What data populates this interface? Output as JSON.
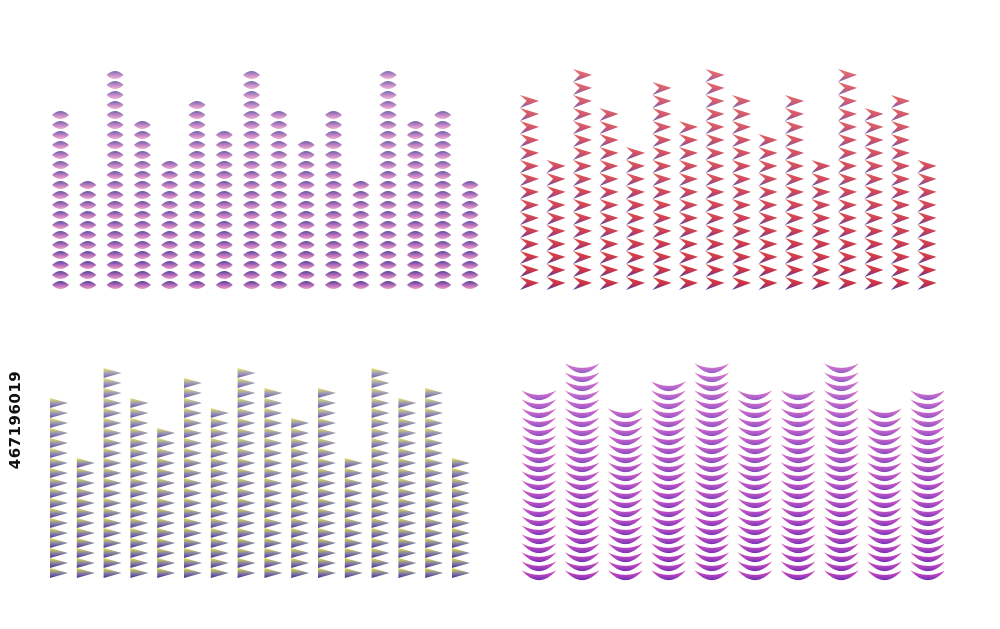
{
  "stock_id": "467196019",
  "panels": [
    {
      "id": "top-left-rounded-equalizer",
      "segment_shape": "rounded-capsule",
      "colors": {
        "top": "#4f3f9a",
        "mid": "#b66fb8",
        "bottom": "#f39ac8"
      },
      "levels": [
        0.82,
        0.49,
        0.98,
        0.76,
        0.61,
        0.88,
        0.71,
        0.98,
        0.82,
        0.66,
        0.82,
        0.52,
        0.98,
        0.77,
        0.82,
        0.52
      ]
    },
    {
      "id": "top-right-arrow-equalizer",
      "segment_shape": "chevron",
      "colors": {
        "top": "#e3463c",
        "mid": "#c5304c",
        "bottom": "#3d3ca8"
      },
      "levels": [
        0.87,
        0.6,
        1.0,
        0.82,
        0.65,
        0.93,
        0.76,
        1.0,
        0.87,
        0.71,
        0.87,
        0.6,
        1.0,
        0.82,
        0.87,
        0.6
      ]
    },
    {
      "id": "bottom-left-triangle-equalizer",
      "segment_shape": "triangle",
      "colors": {
        "top": "#e8e23a",
        "mid": "#7d7aa5",
        "bottom": "#4a2e8c"
      },
      "levels": [
        0.8,
        0.54,
        0.97,
        0.83,
        0.68,
        0.9,
        0.78,
        0.97,
        0.86,
        0.73,
        0.87,
        0.55,
        0.97,
        0.83,
        0.87,
        0.55
      ]
    },
    {
      "id": "bottom-right-crescent-equalizer",
      "segment_shape": "crescent",
      "colors": {
        "top": "#e04ba8",
        "mid": "#b13fc0",
        "bottom": "#6a2bb0"
      },
      "levels": [
        0.86,
        0.99,
        0.8,
        0.93,
        0.99,
        0.86,
        0.86,
        0.99,
        0.8,
        0.86
      ]
    }
  ]
}
